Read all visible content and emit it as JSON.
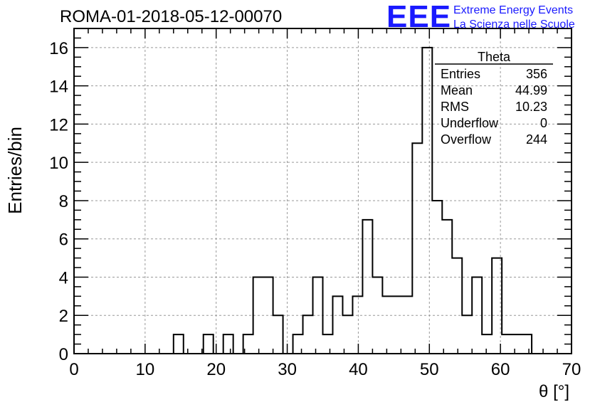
{
  "title": "ROMA-01-2018-05-12-00070",
  "logo": {
    "mark": "EEE",
    "line1": "Extreme Energy Events",
    "line2": "La Scienza nelle Scuole",
    "color": "#1a1aff"
  },
  "chart_data": {
    "type": "bar",
    "style": "step-histogram",
    "xlabel": "θ [°]",
    "ylabel": "Entries/bin",
    "xlim": [
      0,
      70
    ],
    "ylim": [
      0,
      17
    ],
    "xticks": [
      0,
      10,
      20,
      30,
      40,
      50,
      60,
      70
    ],
    "yticks": [
      0,
      2,
      4,
      6,
      8,
      10,
      12,
      14,
      16
    ],
    "grid": true,
    "bin_edges": [
      0,
      1.4,
      2.8,
      4.2,
      5.6,
      7,
      8.4,
      9.8,
      11.2,
      12.6,
      14,
      15.4,
      16.8,
      18.2,
      19.6,
      21,
      22.4,
      23.8,
      25.2,
      26.6,
      28,
      29.4,
      30.8,
      32.2,
      33.6,
      35,
      36.4,
      37.8,
      39.2,
      40.6,
      42,
      43.4,
      44.8,
      46.2,
      47.6,
      49,
      50.4,
      51.8,
      53.2,
      54.6,
      56,
      57.4,
      58.8,
      60.2,
      61.6,
      63,
      64.4,
      65.8,
      67.2,
      68.6,
      70
    ],
    "values": [
      0,
      0,
      0,
      0,
      0,
      0,
      0,
      0,
      0,
      0,
      1,
      0,
      0,
      1,
      0,
      1,
      0,
      1,
      4,
      4,
      2,
      0,
      1,
      2,
      4,
      1,
      3,
      2,
      3,
      7,
      4,
      3,
      3,
      3,
      11,
      16,
      8,
      7,
      5,
      2,
      4,
      1,
      5,
      1,
      1,
      1,
      0,
      0,
      0,
      0
    ],
    "stats": {
      "title": "Theta",
      "rows": [
        {
          "label": "Entries",
          "value": "356"
        },
        {
          "label": "Mean",
          "value": "44.99"
        },
        {
          "label": "RMS",
          "value": "10.23"
        },
        {
          "label": "Underflow",
          "value": "0"
        },
        {
          "label": "Overflow",
          "value": "244"
        }
      ]
    }
  }
}
